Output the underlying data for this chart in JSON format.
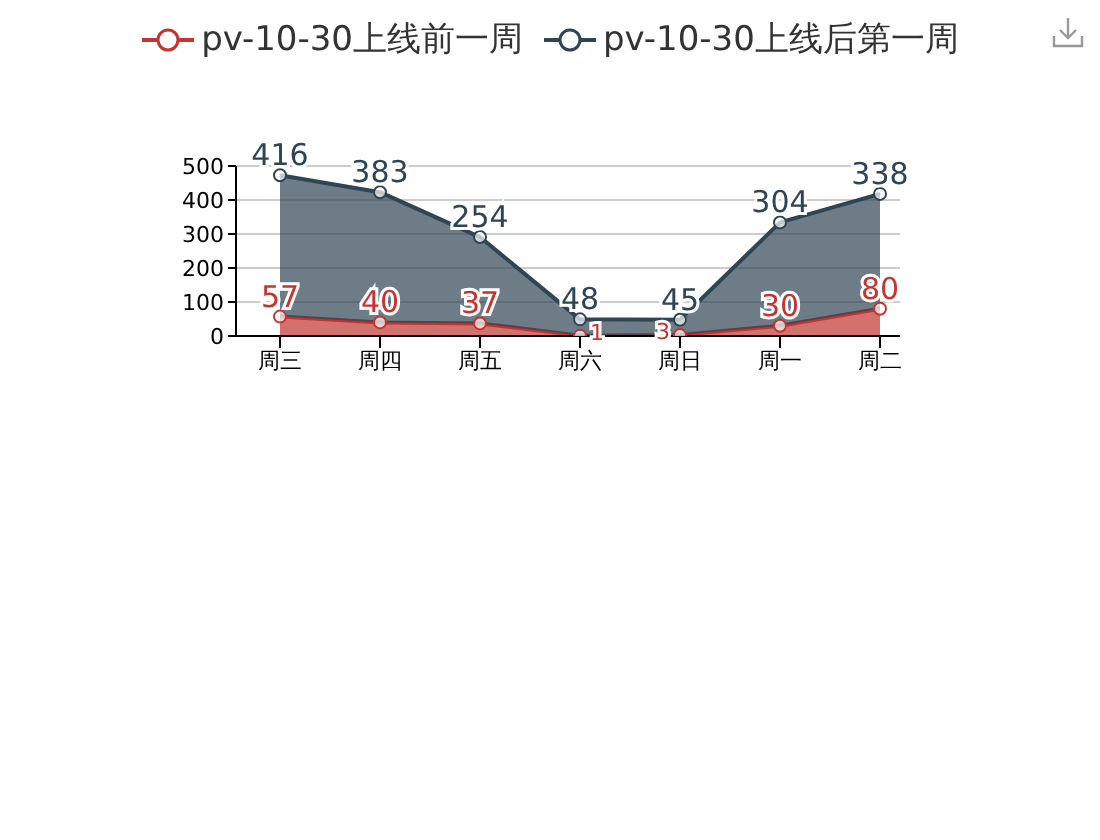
{
  "chart_data": {
    "type": "area",
    "stacked": true,
    "categories": [
      "周三",
      "周四",
      "周五",
      "周六",
      "周日",
      "周一",
      "周二"
    ],
    "series": [
      {
        "name": "pv-10-30上线前一周",
        "color": "#c23531",
        "values": [
          57,
          40,
          37,
          1,
          3,
          30,
          80
        ]
      },
      {
        "name": "pv-10-30上线后第一周",
        "color": "#2f4554",
        "values": [
          416,
          383,
          254,
          48,
          45,
          304,
          338
        ]
      }
    ],
    "ylim": [
      0,
      500
    ],
    "yticks": [
      0,
      100,
      200,
      300,
      400,
      500
    ],
    "grid": "y",
    "legend": "top",
    "marker": "circle",
    "data_labels": true
  }
}
